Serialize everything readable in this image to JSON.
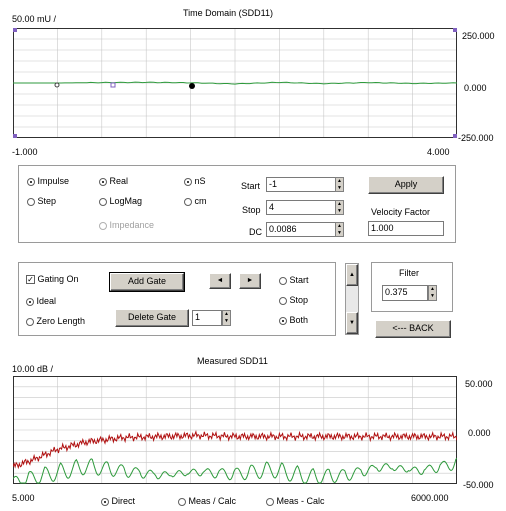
{
  "time_domain": {
    "title": "Time Domain (SDD11)",
    "scale_label": "50.00 mU /",
    "y_right": [
      "250.000",
      "0.000",
      "-250.000"
    ],
    "x_start": "-1.000",
    "x_end": "4.000"
  },
  "format_panel": {
    "radios_col1": [
      {
        "label": "Impulse",
        "selected": true
      },
      {
        "label": "Step",
        "selected": false
      }
    ],
    "radios_col2": [
      {
        "label": "Real",
        "selected": true
      },
      {
        "label": "LogMag",
        "selected": false
      },
      {
        "label": "Impedance",
        "selected": false,
        "disabled": true
      }
    ],
    "radios_col3": [
      {
        "label": "nS",
        "selected": true
      },
      {
        "label": "cm",
        "selected": false
      }
    ],
    "start_label": "Start",
    "start_value": "-1",
    "stop_label": "Stop",
    "stop_value": "4",
    "dc_label": "DC",
    "dc_value": "0.0086",
    "apply_label": "Apply",
    "velocity_label": "Velocity Factor",
    "velocity_value": "1.000"
  },
  "gating_panel": {
    "gating_on_label": "Gating On",
    "gating_on_checked": true,
    "add_gate_label": "Add Gate",
    "delete_gate_label": "Delete Gate",
    "gate_number": "1",
    "ideal_label": "Ideal",
    "zero_length_label": "Zero Length",
    "left_arrow": "◄",
    "right_arrow": "►",
    "start_label": "Start",
    "stop_label": "Stop",
    "both_label": "Both",
    "selected_edge": "Both"
  },
  "filter_panel": {
    "label": "Filter",
    "value": "0.375",
    "back_label": "<--- BACK"
  },
  "measured": {
    "title": "Measured SDD11",
    "scale_label": "10.00 dB /",
    "y_right": [
      "50.000",
      "0.000",
      "-50.000"
    ],
    "x_start": "5.000",
    "x_end": "6000.000",
    "view_options": [
      {
        "label": "Direct",
        "selected": true
      },
      {
        "label": "Meas / Calc",
        "selected": false
      },
      {
        "label": "Meas - Calc",
        "selected": false
      }
    ]
  },
  "colors": {
    "trace_green": "#2e9a3c",
    "trace_red": "#b01010",
    "grid": "#c8c8c8",
    "marker_purple": "#8060c0"
  },
  "chart_data": [
    {
      "type": "line",
      "title": "Time Domain (SDD11)",
      "ylim": [
        -250,
        250
      ],
      "xlim": [
        -1,
        4
      ],
      "series": [
        {
          "values_note_free": true,
          "x": [
            -1,
            -0.5,
            0,
            0.5,
            1,
            1.5,
            2,
            2.5,
            3,
            3.5,
            4
          ],
          "y": [
            0,
            0,
            2,
            3,
            1,
            -4,
            3,
            -3,
            2,
            -2,
            0
          ]
        }
      ]
    },
    {
      "type": "line",
      "title": "Measured SDD11",
      "ylim": [
        -50,
        50
      ],
      "xlim": [
        5,
        6000
      ],
      "series": [
        {
          "x": [
            5,
            300,
            600,
            1000,
            1500,
            2000,
            2500,
            3000,
            3500,
            4000,
            4500,
            5000,
            5500,
            6000
          ],
          "y": [
            -34,
            -27,
            -18,
            -11,
            -7,
            -6,
            -5,
            -6,
            -6,
            -6,
            -6,
            -6,
            -6,
            -6
          ]
        },
        {
          "x": [
            5,
            300,
            600,
            1000,
            1500,
            2000,
            2500,
            3000,
            3500,
            4000,
            4500,
            5000,
            5500,
            6000
          ],
          "y": [
            -45,
            -40,
            -36,
            -30,
            -34,
            -38,
            -35,
            -37,
            -33,
            -40,
            -38,
            -30,
            -34,
            -27
          ]
        }
      ]
    }
  ]
}
